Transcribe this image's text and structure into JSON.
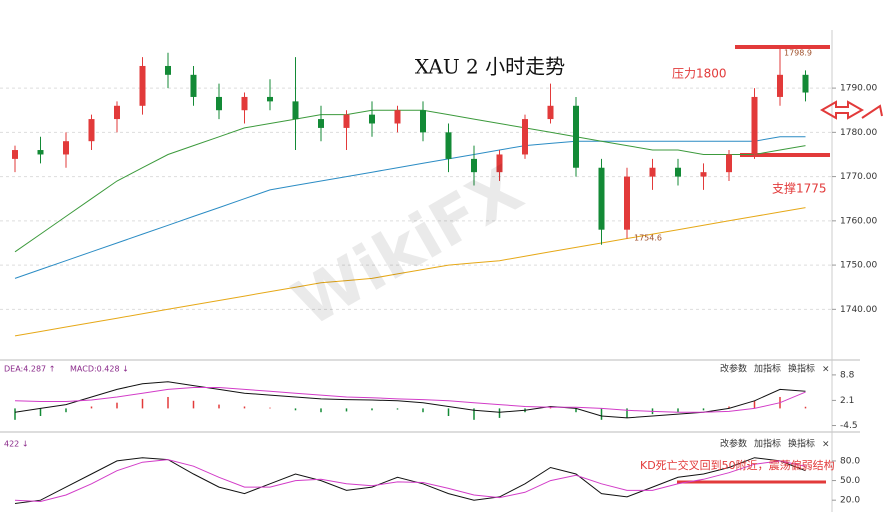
{
  "chart_data": [
    {
      "type": "candlestick",
      "title": "XAU 2 小时走势",
      "open": [
        1774,
        1776,
        1775,
        1778,
        1783,
        1786,
        1795,
        1793,
        1788,
        1785,
        1788,
        1787,
        1783,
        1781,
        1784,
        1782,
        1785,
        1780,
        1774,
        1771,
        1775,
        1783,
        1786,
        1772,
        1758,
        1770,
        1772,
        1770,
        1771,
        1775,
        1788,
        1793
      ],
      "high": [
        1777,
        1779,
        1780,
        1784,
        1787,
        1797,
        1798,
        1795,
        1791,
        1789,
        1792,
        1797,
        1786,
        1785,
        1787,
        1786,
        1787,
        1782,
        1777,
        1776,
        1784,
        1791,
        1788,
        1774,
        1772,
        1774,
        1774,
        1773,
        1776,
        1790,
        1798.9,
        1794
      ],
      "low": [
        1771,
        1773,
        1772,
        1776,
        1780,
        1784,
        1790,
        1786,
        1783,
        1782,
        1785,
        1776,
        1778,
        1776,
        1779,
        1780,
        1778,
        1771,
        1768,
        1769,
        1774,
        1782,
        1770,
        1754.6,
        1756,
        1767,
        1768,
        1767,
        1769,
        1774,
        1786,
        1787
      ],
      "close": [
        1776,
        1775,
        1778,
        1783,
        1786,
        1795,
        1793,
        1788,
        1785,
        1788,
        1787,
        1783,
        1781,
        1784,
        1782,
        1785,
        1780,
        1774,
        1771,
        1775,
        1783,
        1786,
        1772,
        1758,
        1770,
        1772,
        1770,
        1771,
        1775,
        1788,
        1793,
        1789
      ],
      "up_color": "#e23a3a",
      "down_color": "#138a36",
      "series": [
        {
          "color": "#e6a817",
          "values": [
            1734,
            1735,
            1736,
            1737,
            1738,
            1739,
            1740,
            1741,
            1742,
            1743,
            1744,
            1745,
            1746,
            1746.5,
            1747,
            1748,
            1749,
            1750,
            1750.5,
            1751,
            1752,
            1753,
            1754,
            1755,
            1756,
            1757,
            1758,
            1759,
            1760,
            1761,
            1762,
            1763
          ]
        },
        {
          "color": "#2b8cc4",
          "values": [
            1747,
            1749,
            1751,
            1753,
            1755,
            1757,
            1759,
            1761,
            1763,
            1765,
            1767,
            1768,
            1769,
            1770,
            1771,
            1772,
            1773,
            1774,
            1775,
            1776,
            1777,
            1777.5,
            1778,
            1778,
            1778,
            1778,
            1778,
            1778,
            1778,
            1778,
            1779,
            1779
          ]
        },
        {
          "color": "#3c9a3c",
          "values": [
            1753,
            1757,
            1761,
            1765,
            1769,
            1772,
            1775,
            1777,
            1779,
            1781,
            1782,
            1783,
            1784,
            1784,
            1785,
            1785,
            1785,
            1784,
            1783,
            1782,
            1781,
            1780,
            1779,
            1778,
            1777,
            1776,
            1776,
            1775,
            1775,
            1775,
            1776,
            1777
          ]
        }
      ],
      "ylim": [
        1729,
        1802
      ],
      "yticks": [
        {
          "value": 1740,
          "label": "1740.00"
        },
        {
          "value": 1750,
          "label": "1750.00"
        },
        {
          "value": 1760,
          "label": "1760.00"
        },
        {
          "value": 1770,
          "label": "1770.00"
        },
        {
          "value": 1780,
          "label": "1780.00"
        },
        {
          "value": 1790,
          "label": "1790.00"
        }
      ],
      "grid": true,
      "annotations": [
        "压力1800",
        "支撑1775",
        "1798.9",
        "1754.6"
      ],
      "watermark": "WikiFX"
    },
    {
      "type": "combo",
      "indicator_labels": [
        "DEA:4.287 ↑",
        "MACD:0.428 ↓"
      ],
      "buttons": [
        "改参数",
        "加指标",
        "换指标",
        "×"
      ],
      "histogram": [
        -3,
        -2,
        -1,
        0.5,
        1.5,
        2.5,
        3,
        2,
        1,
        0.5,
        0.2,
        -0.5,
        -1,
        -0.8,
        -0.5,
        -0.3,
        -1,
        -2,
        -3,
        -2.5,
        -1,
        0.5,
        -1,
        -3,
        -2.5,
        -1.5,
        -1,
        -0.5,
        0.5,
        2,
        3,
        0.428
      ],
      "up_color": "#e23a3a",
      "down_color": "#138a36",
      "series": [
        {
          "color": "#111111",
          "values": [
            -1,
            0,
            1,
            3,
            5,
            6.5,
            7,
            6,
            5,
            4,
            3.5,
            3,
            2.5,
            2.3,
            2.2,
            2,
            1.5,
            0.5,
            -0.5,
            -1,
            -0.5,
            0.5,
            0,
            -2,
            -2.5,
            -2,
            -1.5,
            -1,
            0,
            2,
            5,
            4.5
          ]
        },
        {
          "color": "#d23cc8",
          "values": [
            2,
            1.8,
            1.8,
            2.2,
            3,
            4,
            5,
            5.5,
            5.5,
            5,
            4.5,
            4,
            3.5,
            3,
            2.8,
            2.5,
            2.3,
            2,
            1.5,
            1,
            0.5,
            0.3,
            0.3,
            0,
            -0.5,
            -0.8,
            -1,
            -1,
            -0.8,
            0,
            1.5,
            4.287
          ]
        }
      ],
      "ylim": [
        -6.2,
        11.4
      ],
      "yticks": [
        8.8,
        2.1,
        -4.5
      ]
    },
    {
      "type": "line",
      "indicator_labels": [
        "422 ↓"
      ],
      "buttons": [
        "改参数",
        "加指标",
        "换指标",
        "×"
      ],
      "series": [
        {
          "color": "#111111",
          "values": [
            15,
            20,
            40,
            60,
            80,
            85,
            82,
            60,
            40,
            30,
            45,
            60,
            50,
            35,
            40,
            55,
            45,
            30,
            20,
            25,
            45,
            70,
            60,
            30,
            25,
            40,
            55,
            60,
            70,
            85,
            80,
            65
          ]
        },
        {
          "color": "#d23cc8",
          "values": [
            20,
            18,
            28,
            45,
            65,
            78,
            82,
            72,
            55,
            40,
            40,
            50,
            52,
            45,
            42,
            48,
            47,
            38,
            28,
            24,
            32,
            50,
            58,
            45,
            35,
            35,
            45,
            52,
            62,
            75,
            80,
            72
          ]
        }
      ],
      "ylim": [
        5,
        112
      ],
      "yticks": [
        {
          "value": 20,
          "label": "20.0"
        },
        {
          "value": 50,
          "label": "50.0"
        },
        {
          "value": 80,
          "label": "80.0"
        }
      ],
      "annotations": [
        "KD死亡交叉回到50附近，震荡偏弱结构"
      ]
    }
  ]
}
